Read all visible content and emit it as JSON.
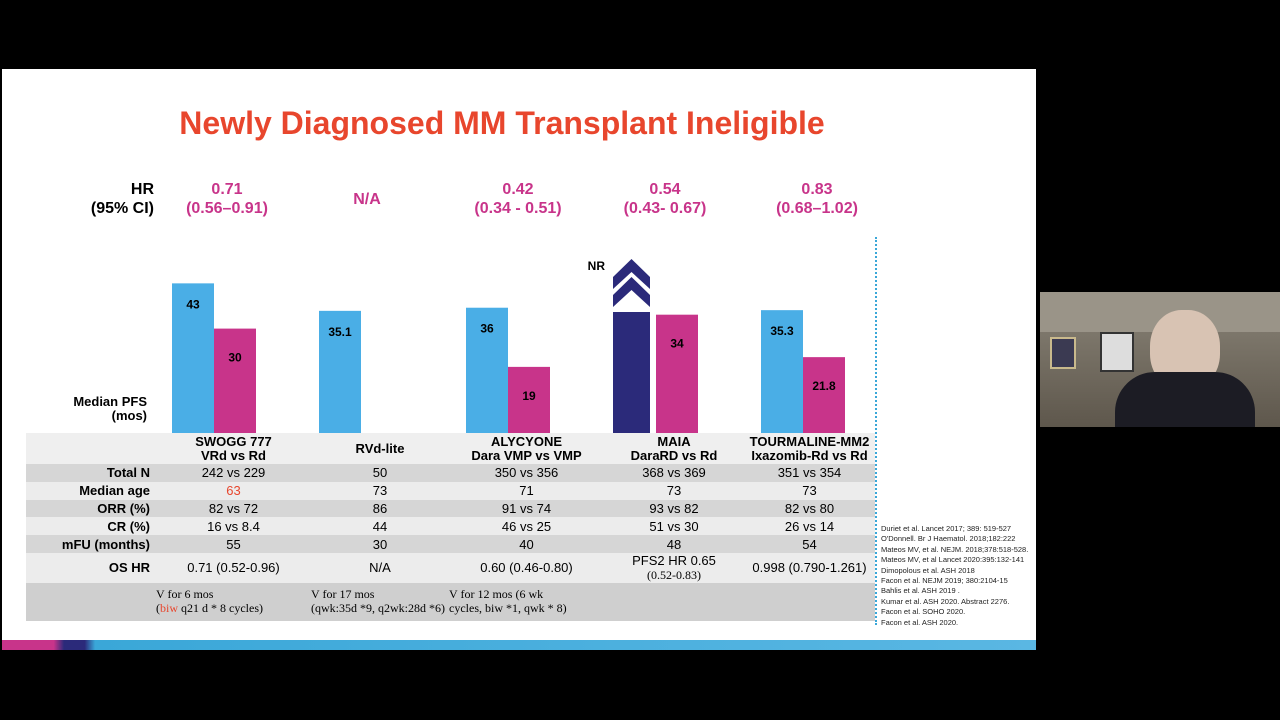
{
  "title": "Newly Diagnosed MM Transplant Ineligible",
  "hr_label": [
    "HR",
    "(95% CI)"
  ],
  "pfs_label": [
    "Median PFS",
    "(mos)"
  ],
  "colors": {
    "title": "#e8462d",
    "blue": "#4aaee6",
    "magenta": "#c8348a",
    "navy": "#2b2a7a"
  },
  "chart_data": {
    "type": "bar",
    "ylabel": "Median PFS (mos)",
    "categories": [
      "SWOGG 777",
      "RVd-lite",
      "ALYCYONE",
      "MAIA",
      "TOURMALINE-MM2"
    ],
    "hr": [
      [
        "0.71",
        "(0.56–0.91)"
      ],
      [
        "N/A",
        ""
      ],
      [
        "0.42",
        "(0.34 - 0.51)"
      ],
      [
        "0.54",
        "(0.43- 0.67)"
      ],
      [
        "0.83",
        "(0.68–1.02)"
      ]
    ],
    "series": [
      {
        "values": [
          43,
          35.1,
          36,
          "NR",
          35.3
        ],
        "labels": [
          "43",
          "35.1",
          "36",
          "NR",
          "35.3"
        ]
      },
      {
        "values": [
          30,
          null,
          19,
          34,
          21.8
        ],
        "labels": [
          "30",
          "",
          "19",
          "34",
          "21.8"
        ]
      }
    ]
  },
  "table": {
    "headers": [
      [
        "SWOGG 777",
        "VRd vs Rd"
      ],
      [
        "RVd-lite",
        ""
      ],
      [
        "ALYCYONE",
        "Dara VMP vs VMP"
      ],
      [
        "MAIA",
        "DaraRD vs Rd"
      ],
      [
        "TOURMALINE-MM2",
        "Ixazomib-Rd vs Rd"
      ]
    ],
    "rows": [
      {
        "label": "Total N",
        "cells": [
          "242 vs 229",
          "50",
          "350 vs 356",
          "368 vs 369",
          "351 vs 354"
        ]
      },
      {
        "label": "Median age",
        "cells": [
          "63",
          "73",
          "71",
          "73",
          "73"
        ]
      },
      {
        "label": "ORR (%)",
        "cells": [
          "82 vs 72",
          "86",
          "91 vs 74",
          "93 vs 82",
          "82 vs 80"
        ]
      },
      {
        "label": "CR (%)",
        "cells": [
          "16 vs 8.4",
          "44",
          "46 vs 25",
          "51 vs 30",
          "26 vs 14"
        ]
      },
      {
        "label": "mFU (months)",
        "cells": [
          "55",
          "30",
          "40",
          "48",
          "54"
        ]
      },
      {
        "label": "OS HR",
        "cells": [
          "0.71 (0.52-0.96)",
          "N/A",
          "0.60 (0.46-0.80)",
          "PFS2 HR 0.65",
          "0.998 (0.790-1.261)"
        ],
        "sub4": "(0.52-0.83)"
      }
    ],
    "notes": [
      [
        "V for 6 mos",
        "(",
        "biw",
        " q21 d * 8 cycles)"
      ],
      [
        "V for 17 mos",
        "(qwk:35d *9, q2wk:28d *6)"
      ],
      [
        "V for 12 mos (6 wk",
        "cycles, biw *1, qwk * 8)"
      ]
    ]
  },
  "references": [
    "Duriet et al. Lancet 2017; 389: 519-527",
    "O'Donnell. Br J Haematol. 2018;182:222",
    "Mateos MV, et al. NEJM. 2018;378:518-528.",
    "Mateos MV, et al Lancet  2020:395:132-141",
    "Dimopolous et al. ASH 2018",
    "Facon et al. NEJM 2019; 380:2104-15",
    "Bahlis et al. ASH 2019 .",
    "Kumar et al. ASH 2020. Abstract 2276.",
    "Facon et al. SOHO 2020.",
    "Facon et al. ASH 2020."
  ]
}
